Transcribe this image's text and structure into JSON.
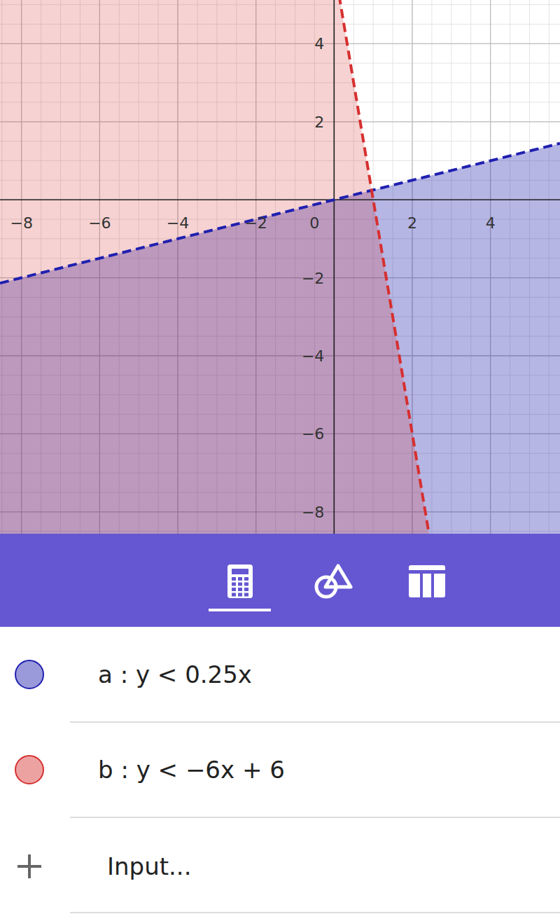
{
  "chart_data": {
    "type": "inequality",
    "xlim": [
      -8.55,
      5.78
    ],
    "ylim": [
      -8.56,
      5.12
    ],
    "xticks": [
      {
        "value": -8,
        "label": "−8"
      },
      {
        "value": -6,
        "label": "−6"
      },
      {
        "value": -4,
        "label": "−4"
      },
      {
        "value": -2,
        "label": "−2"
      },
      0,
      2,
      4
    ],
    "yticks": [
      {
        "value": -8,
        "label": "−8"
      },
      {
        "value": -6,
        "label": "−6"
      },
      {
        "value": -4,
        "label": "−4"
      },
      {
        "value": -2,
        "label": "−2"
      },
      2,
      4
    ],
    "grid": true,
    "series": [
      {
        "name": "a : y < 0.25x",
        "slope": 0.25,
        "intercept": 0,
        "color": "#2020b0",
        "line_style": "dashed"
      },
      {
        "name": "b : y < −6x + 6",
        "slope": -6,
        "intercept": 6,
        "color": "#d63030",
        "line_style": "dashed"
      }
    ]
  },
  "app": {
    "input": "Input..."
  }
}
